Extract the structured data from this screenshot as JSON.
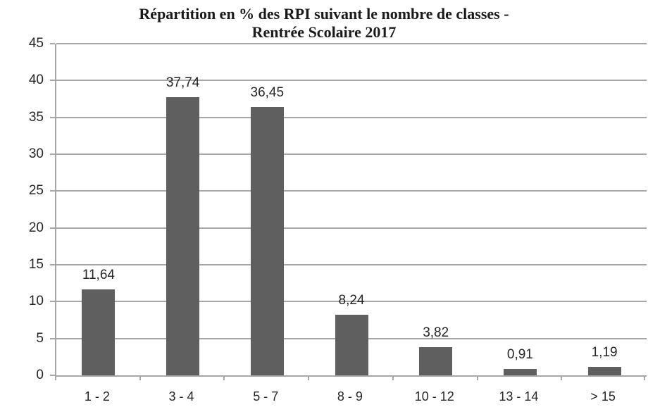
{
  "chart_data": {
    "type": "bar",
    "title": "Répartition en % des RPI suivant le nombre de classes - Rentrée Scolaire 2017",
    "title_lines": [
      "Répartition en % des RPI suivant le nombre de classes -",
      "Rentrée Scolaire 2017"
    ],
    "categories": [
      "1 - 2",
      "3 - 4",
      "5 - 7",
      "8 - 9",
      "10 - 12",
      "13 - 14",
      "> 15"
    ],
    "values": [
      11.64,
      37.74,
      36.45,
      8.24,
      3.82,
      0.91,
      1.19
    ],
    "value_labels": [
      "11,64",
      "37,74",
      "36,45",
      "8,24",
      "3,82",
      "0,91",
      "1,19"
    ],
    "xlabel": "",
    "ylabel": "",
    "ylim": [
      0,
      45
    ],
    "yticks": [
      0,
      5,
      10,
      15,
      20,
      25,
      30,
      35,
      40,
      45
    ],
    "grid": true,
    "legend": "none",
    "colors": {
      "bar": "#5f5f5f",
      "gridline": "#a6a6a6",
      "axis": "#a6a6a6",
      "text": "#262626",
      "title_text": "#1a1a1a",
      "background": "#ffffff"
    }
  }
}
